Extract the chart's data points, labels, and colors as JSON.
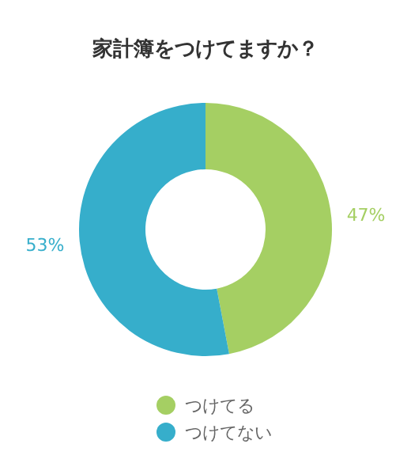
{
  "chart_data": {
    "type": "donut",
    "title": "家計簿をつけてますか？",
    "categories": [
      "つけてる",
      "つけてない"
    ],
    "values": [
      47,
      53
    ],
    "colors": [
      "#a5cf63",
      "#36aecb"
    ],
    "value_labels": [
      "47%",
      "53%"
    ],
    "legend": "bottom"
  }
}
